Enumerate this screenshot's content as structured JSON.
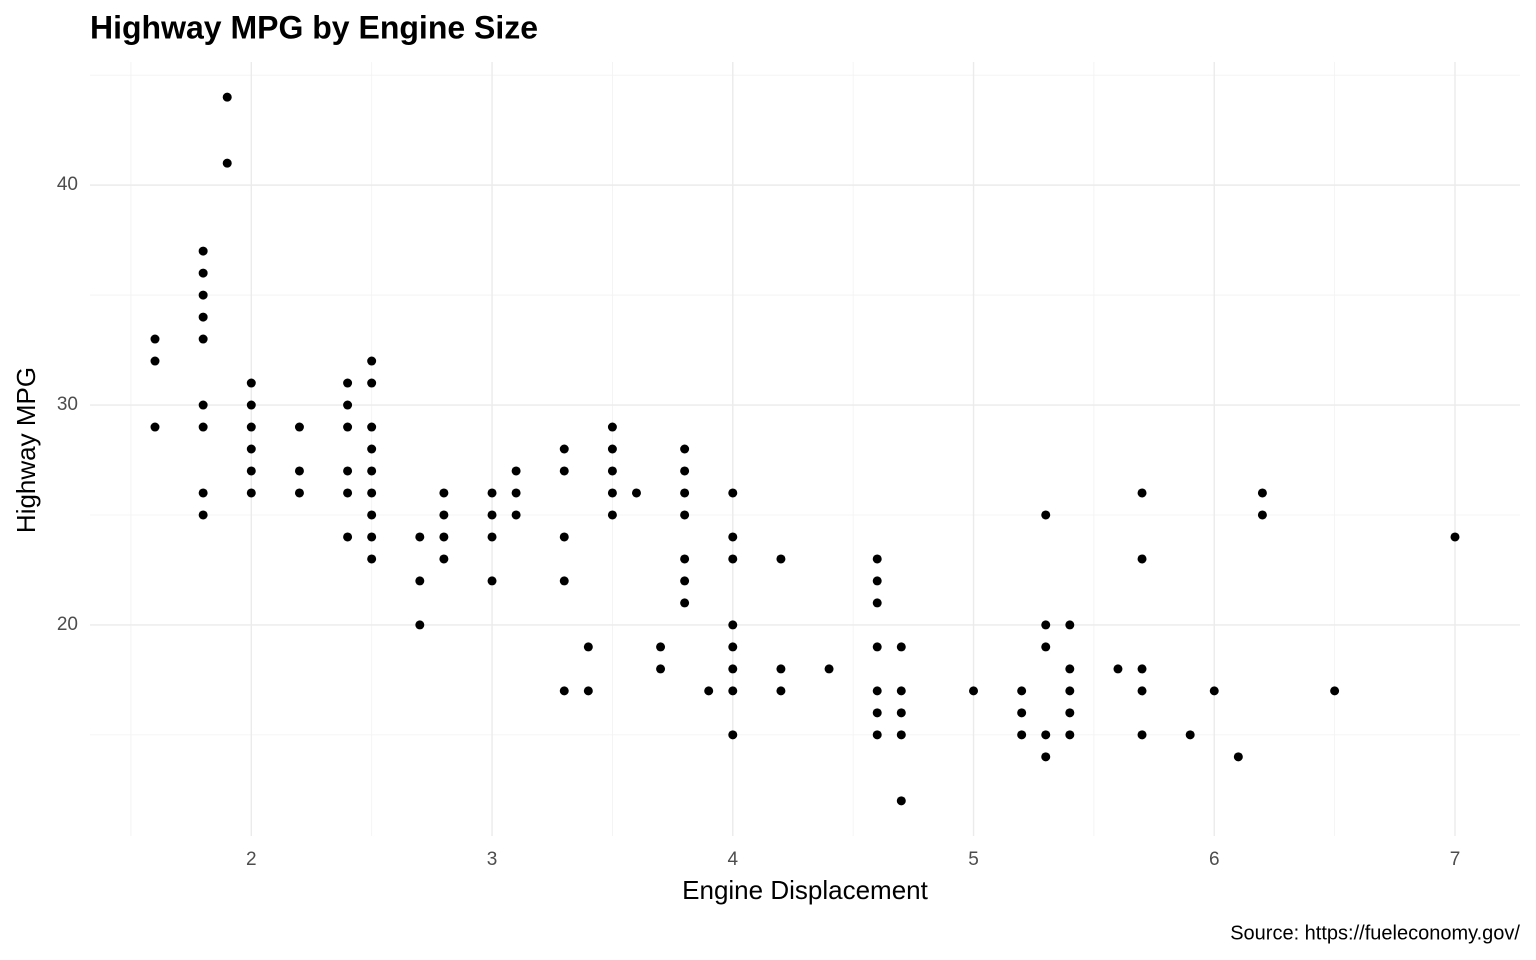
{
  "chart_data": {
    "type": "scatter",
    "title": "Highway MPG by Engine Size",
    "x_label": "Engine Displacement",
    "y_label": "Highway MPG",
    "caption": "Source: https://fueleconomy.gov/",
    "color": "#000000",
    "grid": true,
    "x": [
      1.6,
      1.6,
      1.6,
      1.8,
      1.8,
      1.8,
      1.8,
      1.8,
      1.8,
      1.8,
      1.8,
      1.8,
      1.9,
      1.9,
      2.0,
      2.0,
      2.0,
      2.0,
      2.0,
      2.0,
      2.2,
      2.2,
      2.2,
      2.4,
      2.4,
      2.4,
      2.4,
      2.4,
      2.4,
      2.5,
      2.5,
      2.5,
      2.5,
      2.5,
      2.5,
      2.5,
      2.5,
      2.5,
      2.7,
      2.7,
      2.7,
      2.8,
      2.8,
      2.8,
      2.8,
      3.0,
      3.0,
      3.0,
      3.0,
      3.1,
      3.1,
      3.1,
      3.3,
      3.3,
      3.3,
      3.3,
      3.3,
      3.4,
      3.4,
      3.5,
      3.5,
      3.5,
      3.5,
      3.5,
      3.6,
      3.7,
      3.7,
      3.8,
      3.8,
      3.8,
      3.8,
      3.8,
      3.8,
      3.8,
      3.9,
      4.0,
      4.0,
      4.0,
      4.0,
      4.0,
      4.0,
      4.0,
      4.0,
      4.2,
      4.2,
      4.2,
      4.4,
      4.6,
      4.6,
      4.6,
      4.6,
      4.6,
      4.6,
      4.6,
      4.7,
      4.7,
      4.7,
      4.7,
      4.7,
      5.0,
      5.2,
      5.2,
      5.2,
      5.3,
      5.3,
      5.3,
      5.3,
      5.3,
      5.4,
      5.4,
      5.4,
      5.4,
      5.4,
      5.6,
      5.7,
      5.7,
      5.7,
      5.7,
      5.7,
      5.9,
      6.0,
      6.1,
      6.2,
      6.2,
      6.5,
      7.0
    ],
    "values": [
      33,
      32,
      29,
      37,
      36,
      35,
      34,
      33,
      30,
      29,
      26,
      25,
      44,
      41,
      31,
      30,
      29,
      28,
      27,
      26,
      29,
      27,
      26,
      31,
      30,
      29,
      27,
      26,
      24,
      32,
      31,
      29,
      28,
      27,
      26,
      25,
      24,
      23,
      24,
      22,
      20,
      26,
      25,
      24,
      23,
      26,
      25,
      24,
      22,
      27,
      26,
      25,
      28,
      27,
      24,
      22,
      17,
      19,
      17,
      29,
      28,
      27,
      26,
      25,
      26,
      19,
      18,
      28,
      27,
      26,
      25,
      23,
      22,
      21,
      17,
      26,
      24,
      23,
      20,
      19,
      18,
      17,
      15,
      23,
      18,
      17,
      18,
      23,
      22,
      21,
      19,
      17,
      16,
      15,
      19,
      17,
      16,
      15,
      12,
      17,
      17,
      16,
      15,
      25,
      20,
      19,
      15,
      14,
      20,
      18,
      17,
      16,
      15,
      18,
      26,
      23,
      18,
      17,
      15,
      15,
      17,
      14,
      26,
      25,
      17,
      24
    ],
    "xlim": [
      1.33,
      7.27
    ],
    "ylim": [
      10.4,
      45.6
    ],
    "xticks": [
      2,
      3,
      4,
      5,
      6,
      7
    ],
    "yticks": [
      20,
      30,
      40
    ],
    "x_minor_ticks": [
      1.5,
      2.5,
      3.5,
      4.5,
      5.5,
      6.5
    ],
    "y_minor_ticks": [
      15,
      25,
      35,
      45
    ]
  }
}
